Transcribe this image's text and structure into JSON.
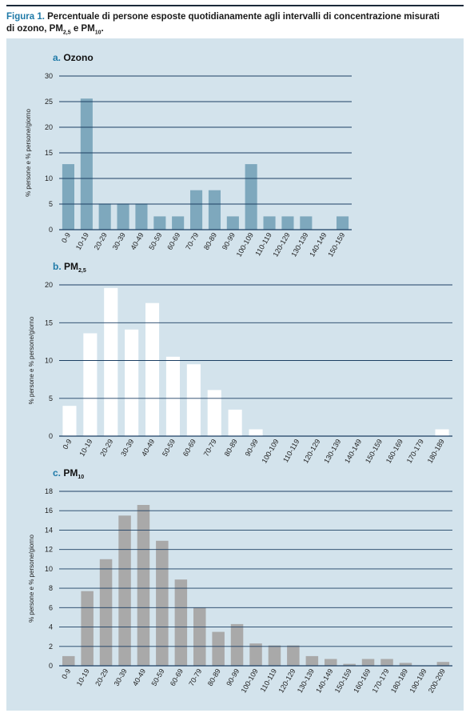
{
  "figure": {
    "label": "Figura 1.",
    "caption_line1": "Percentuale di persone esposte quotidianamente agli intervalli di concentrazione misurati",
    "caption_line2_pre": "di ozono, PM",
    "caption_sub1": "2,5",
    "caption_mid": " e PM",
    "caption_sub2": "10",
    "caption_end": "."
  },
  "colors": {
    "ozone": "#7ea8bd",
    "pm25": "#ffffff",
    "pm10": "#a9a9a9",
    "gridline": "#1c3f63",
    "panel": "#d3e3ec",
    "title_letter": "#1f7aa8"
  },
  "chart_data": [
    {
      "type": "bar",
      "letter": "a.",
      "title": "Ozono",
      "title_sub": "",
      "ylabel": "% persone e % persone/giorno",
      "ylim": [
        0,
        30
      ],
      "yticks": [
        0,
        5,
        10,
        15,
        20,
        25,
        30
      ],
      "categories": [
        "0-9",
        "10-19",
        "20-29",
        "30-39",
        "40-49",
        "50-59",
        "60-69",
        "70-79",
        "80-89",
        "90-99",
        "100-109",
        "110-119",
        "120-129",
        "130-139",
        "140-149",
        "150-159"
      ],
      "values": [
        12.8,
        25.6,
        5.1,
        5.1,
        5.1,
        2.6,
        2.6,
        7.7,
        7.7,
        2.6,
        12.8,
        2.6,
        2.6,
        2.6,
        0,
        2.6
      ]
    },
    {
      "type": "bar",
      "letter": "b.",
      "title": "PM",
      "title_sub": "2,5",
      "ylabel": "% persone e % persone/giorno",
      "ylim": [
        0,
        20
      ],
      "yticks": [
        0,
        5,
        10,
        15,
        20
      ],
      "categories": [
        "0-9",
        "10-19",
        "20-29",
        "30-39",
        "40-49",
        "50-59",
        "60-69",
        "70-79",
        "80-89",
        "90-99",
        "100-109",
        "110-119",
        "120-129",
        "130-139",
        "140-149",
        "150-159",
        "160-169",
        "170-179",
        "180-189"
      ],
      "values": [
        4.0,
        13.6,
        19.6,
        14.1,
        17.6,
        10.5,
        9.5,
        6.1,
        3.5,
        0.9,
        0,
        0,
        0,
        0,
        0,
        0,
        0,
        0,
        0.9
      ]
    },
    {
      "type": "bar",
      "letter": "c.",
      "title": "PM",
      "title_sub": "10",
      "ylabel": "% persone e % persone/giorno",
      "ylim": [
        0,
        18
      ],
      "yticks": [
        0,
        2,
        4,
        6,
        8,
        10,
        12,
        14,
        16,
        18
      ],
      "categories": [
        "0-9",
        "10-19",
        "20-29",
        "30-39",
        "40-49",
        "50-59",
        "60-69",
        "70-79",
        "80-89",
        "90-99",
        "100-109",
        "110-119",
        "120-129",
        "130-139",
        "140-149",
        "150-159",
        "160-169",
        "170-179",
        "180-189",
        "190-199",
        "200-209"
      ],
      "values": [
        1.0,
        7.7,
        11.0,
        15.5,
        16.6,
        12.9,
        8.9,
        6.0,
        3.5,
        4.3,
        2.3,
        2.1,
        2.1,
        1.0,
        0.7,
        0.2,
        0.7,
        0.7,
        0.3,
        0,
        0.4
      ]
    }
  ]
}
